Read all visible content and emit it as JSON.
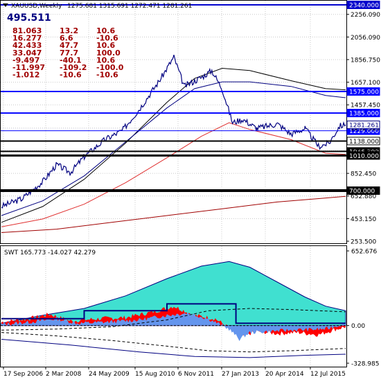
{
  "window": {
    "symbol": "XAUUSD,Weekly",
    "ohlc": "1275.681 1315.691 1272.471 1281.261",
    "counter": "495.511"
  },
  "stats_panel": {
    "rows": [
      [
        "81.063",
        "13.2",
        "10.6"
      ],
      [
        "16.277",
        "6.6",
        "-10.6"
      ],
      [
        "42.433",
        "47.7",
        "10.6"
      ],
      [
        "33.047",
        "77.7",
        "100.0"
      ],
      [
        "-9.497",
        "-40.1",
        "10.6"
      ],
      [
        "-11.997",
        "-109.2",
        "-100.0"
      ],
      [
        "-1.012",
        "-10.6",
        "-10.6"
      ]
    ]
  },
  "price_panel": {
    "y_ticks": [
      "2340.000",
      "2256.090",
      "2056.090",
      "1856.750",
      "1657.100",
      "1457.450",
      "1252.520",
      "1052.800",
      "852.450",
      "652.880",
      "453.150",
      "253.500"
    ],
    "price_badge": "1281.261",
    "levels": [
      {
        "price": 2340,
        "label": "2340.000",
        "color": "#0000cc",
        "width": 2,
        "badge": "#0000cc",
        "text": "#ffffff"
      },
      {
        "price": 1575,
        "label": "1575.000",
        "color": "#0000ff",
        "width": 2,
        "badge": "#0000ff",
        "text": "#ffffff"
      },
      {
        "price": 1385,
        "label": "1385.000",
        "color": "#0000ff",
        "width": 2,
        "badge": "#0000ff",
        "text": "#ffffff"
      },
      {
        "price": 1229,
        "label": "1229.000",
        "color": "#0000ff",
        "width": 1,
        "badge": "#0000ff",
        "text": "#ffffff"
      },
      {
        "price": 1138,
        "label": "1138.000",
        "color": "#000000",
        "width": 2,
        "badge": "#ffffff",
        "text": "#000000"
      },
      {
        "price": 1046.3,
        "label": "1046.300",
        "color": "#000000",
        "width": 2,
        "badge": "#000000",
        "text": "#ffffff"
      },
      {
        "price": 1010,
        "label": "1010.000",
        "color": "#000000",
        "width": 3,
        "badge": "#000000",
        "text": "#ffffff"
      },
      {
        "price": 700,
        "label": "700.000",
        "color": "#000000",
        "width": 4,
        "badge": "#000000",
        "text": "#ffffff"
      }
    ]
  },
  "indicator_panel": {
    "label": "SWT 165.773 -14.027 42.279",
    "y_ticks": [
      "652.676",
      "0.00",
      "-328.985"
    ]
  },
  "time_axis": {
    "labels": [
      "17 Sep 2006",
      "2 Mar 2008",
      "24 May 2009",
      "15 Aug 2010",
      "6 Nov 2011",
      "27 Jan 2013",
      "20 Apr 2014",
      "12 Jul 2015"
    ]
  },
  "chart_data": {
    "type": "line",
    "price_range": [
      253.5,
      2340
    ],
    "price_series": [
      [
        0,
        560
      ],
      [
        30,
        630
      ],
      [
        60,
        780
      ],
      [
        80,
        930
      ],
      [
        100,
        860
      ],
      [
        120,
        1000
      ],
      [
        150,
        1150
      ],
      [
        175,
        1230
      ],
      [
        200,
        1420
      ],
      [
        230,
        1680
      ],
      [
        250,
        1880
      ],
      [
        265,
        1620
      ],
      [
        290,
        1700
      ],
      [
        305,
        1760
      ],
      [
        320,
        1600
      ],
      [
        335,
        1300
      ],
      [
        350,
        1330
      ],
      [
        370,
        1250
      ],
      [
        400,
        1290
      ],
      [
        420,
        1200
      ],
      [
        440,
        1250
      ],
      [
        460,
        1090
      ],
      [
        475,
        1120
      ],
      [
        490,
        1270
      ],
      [
        499,
        1281
      ]
    ],
    "ma_black": [
      [
        0,
        420
      ],
      [
        60,
        560
      ],
      [
        120,
        800
      ],
      [
        180,
        1120
      ],
      [
        240,
        1480
      ],
      [
        280,
        1690
      ],
      [
        320,
        1780
      ],
      [
        360,
        1760
      ],
      [
        420,
        1670
      ],
      [
        470,
        1600
      ],
      [
        499,
        1590
      ]
    ],
    "ma_navy": [
      [
        0,
        480
      ],
      [
        60,
        610
      ],
      [
        120,
        830
      ],
      [
        180,
        1130
      ],
      [
        240,
        1430
      ],
      [
        280,
        1600
      ],
      [
        320,
        1660
      ],
      [
        360,
        1660
      ],
      [
        420,
        1620
      ],
      [
        470,
        1540
      ],
      [
        499,
        1520
      ]
    ],
    "ma_red": [
      [
        0,
        380
      ],
      [
        60,
        450
      ],
      [
        120,
        580
      ],
      [
        180,
        770
      ],
      [
        240,
        990
      ],
      [
        290,
        1180
      ],
      [
        330,
        1300
      ],
      [
        360,
        1240
      ],
      [
        420,
        1150
      ],
      [
        470,
        1030
      ],
      [
        499,
        1020
      ]
    ],
    "ma_darkred": [
      [
        0,
        330
      ],
      [
        80,
        360
      ],
      [
        160,
        420
      ],
      [
        240,
        480
      ],
      [
        320,
        540
      ],
      [
        400,
        600
      ],
      [
        460,
        630
      ],
      [
        499,
        650
      ]
    ],
    "indicator_range": [
      -328.985,
      652.676
    ],
    "teal_area": [
      [
        0,
        20
      ],
      [
        60,
        90
      ],
      [
        120,
        150
      ],
      [
        180,
        260
      ],
      [
        240,
        410
      ],
      [
        290,
        520
      ],
      [
        330,
        560
      ],
      [
        360,
        510
      ],
      [
        400,
        380
      ],
      [
        440,
        250
      ],
      [
        470,
        170
      ],
      [
        499,
        130
      ]
    ],
    "red_area": [
      [
        0,
        30
      ],
      [
        40,
        60
      ],
      [
        70,
        100
      ],
      [
        100,
        40
      ],
      [
        140,
        60
      ],
      [
        180,
        70
      ],
      [
        220,
        120
      ],
      [
        250,
        170
      ],
      [
        280,
        90
      ],
      [
        310,
        60
      ],
      [
        330,
        -20
      ],
      [
        345,
        -100
      ],
      [
        370,
        -50
      ],
      [
        400,
        -70
      ],
      [
        430,
        -60
      ],
      [
        460,
        -80
      ],
      [
        480,
        -40
      ],
      [
        499,
        -10
      ]
    ],
    "blue_area": [
      [
        0,
        10
      ],
      [
        40,
        30
      ],
      [
        80,
        60
      ],
      [
        110,
        20
      ],
      [
        150,
        30
      ],
      [
        200,
        50
      ],
      [
        240,
        90
      ],
      [
        270,
        110
      ],
      [
        300,
        60
      ],
      [
        330,
        -30
      ],
      [
        345,
        -120
      ],
      [
        360,
        -60
      ],
      [
        420,
        -40
      ],
      [
        470,
        -30
      ],
      [
        499,
        20
      ]
    ],
    "step_line": [
      [
        0,
        60
      ],
      [
        120,
        60
      ],
      [
        120,
        130
      ],
      [
        240,
        130
      ],
      [
        240,
        190
      ],
      [
        330,
        190
      ],
      [
        340,
        190
      ],
      [
        340,
        20
      ],
      [
        499,
        20
      ]
    ],
    "dashed_line": [
      [
        0,
        -40
      ],
      [
        80,
        -30
      ],
      [
        160,
        -10
      ],
      [
        240,
        50
      ],
      [
        300,
        130
      ],
      [
        360,
        150
      ],
      [
        420,
        140
      ],
      [
        499,
        120
      ]
    ],
    "lower_band": [
      [
        0,
        -60
      ],
      [
        80,
        -90
      ],
      [
        160,
        -130
      ],
      [
        240,
        -180
      ],
      [
        300,
        -220
      ],
      [
        360,
        -230
      ],
      [
        420,
        -220
      ],
      [
        499,
        -200
      ]
    ],
    "lower_band2": [
      [
        0,
        -120
      ],
      [
        100,
        -170
      ],
      [
        200,
        -230
      ],
      [
        280,
        -270
      ],
      [
        360,
        -280
      ],
      [
        440,
        -260
      ],
      [
        499,
        -250
      ]
    ]
  }
}
